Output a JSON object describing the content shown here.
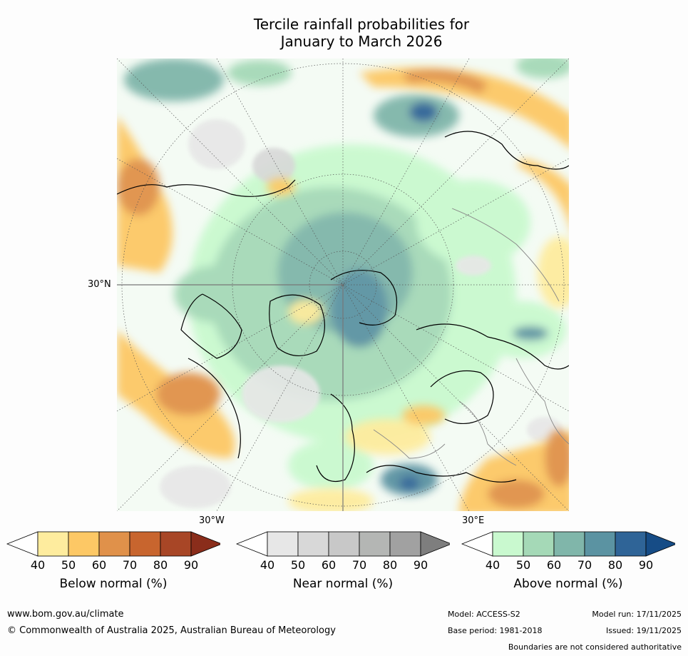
{
  "title": {
    "line1": "Tercile rainfall probabilities for",
    "line2": "January to March 2026"
  },
  "map": {
    "lat_label": "30°N",
    "lon_labels": [
      "30°W",
      "30°E"
    ],
    "projection": "north polar stereographic"
  },
  "legends": [
    {
      "title": "Below normal (%)",
      "ticks": [
        "40",
        "50",
        "60",
        "70",
        "80",
        "90"
      ],
      "colors": [
        "#ffffff",
        "#feec9e",
        "#fdc865",
        "#e0914a",
        "#c8652e",
        "#a84626",
        "#8a2d1b"
      ]
    },
    {
      "title": "Near normal (%)",
      "ticks": [
        "40",
        "50",
        "60",
        "70",
        "80",
        "90"
      ],
      "colors": [
        "#ffffff",
        "#e7e7e7",
        "#d8d8d8",
        "#c8c8c8",
        "#b4b6b4",
        "#a1a1a1",
        "#7e7e7e"
      ]
    },
    {
      "title": "Above normal (%)",
      "ticks": [
        "40",
        "50",
        "60",
        "70",
        "80",
        "90"
      ],
      "colors": [
        "#ffffff",
        "#c9f9cf",
        "#a5d9b7",
        "#80b6aa",
        "#5b93a2",
        "#2f6497",
        "#164c86"
      ]
    }
  ],
  "footer": {
    "website": "www.bom.gov.au/climate",
    "copyright": "© Commonwealth of Australia 2025, Australian Bureau of Meteorology",
    "model": "Model: ACCESS-S2",
    "base_period": "Base period: 1981-2018",
    "model_run": "Model run: 17/11/2025",
    "issued": "Issued: 19/11/2025",
    "disclaimer": "Boundaries are not considered authoritative"
  }
}
